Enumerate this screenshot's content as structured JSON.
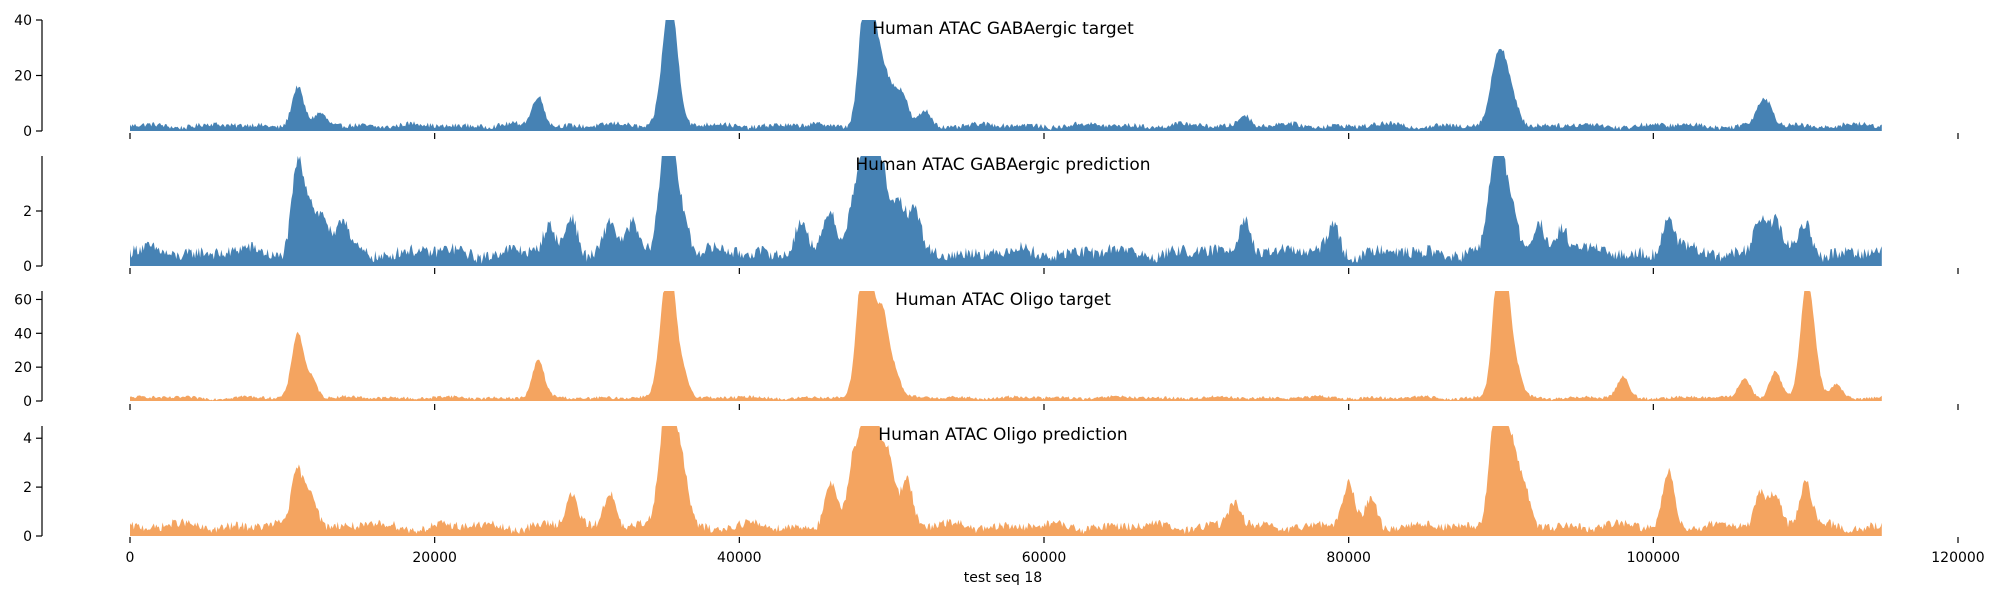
{
  "colors": {
    "blue": "#4682b4",
    "orange": "#f4a460"
  },
  "chart_data": {
    "type": "area",
    "grid": false,
    "xlabel": "test seq 18",
    "xlim": [
      0,
      120000
    ],
    "x_ticks": [
      0,
      20000,
      40000,
      60000,
      80000,
      100000,
      120000
    ],
    "x_tick_labels": [
      "0",
      "20000",
      "40000",
      "60000",
      "80000",
      "100000",
      "120000"
    ],
    "x_range": [
      0,
      115000
    ],
    "panels": [
      {
        "title": "Human ATAC GABAergic target",
        "color": "#4682b4",
        "ylim": [
          0,
          40
        ],
        "y_ticks": [
          0,
          20,
          40
        ],
        "y_tick_labels": [
          "0",
          "20",
          "40"
        ],
        "baseline": 2,
        "peaks": [
          [
            11000,
            14
          ],
          [
            12500,
            4
          ],
          [
            26800,
            11
          ],
          [
            35000,
            14
          ],
          [
            35500,
            37
          ],
          [
            36000,
            8
          ],
          [
            48100,
            20
          ],
          [
            48400,
            33
          ],
          [
            48900,
            18
          ],
          [
            49400,
            14
          ],
          [
            50000,
            9
          ],
          [
            50700,
            11
          ],
          [
            52200,
            5
          ],
          [
            73200,
            4
          ],
          [
            89500,
            10
          ],
          [
            89900,
            16
          ],
          [
            90400,
            14
          ],
          [
            91000,
            5
          ],
          [
            107100,
            7
          ],
          [
            107600,
            5
          ]
        ],
        "series": [
          {
            "x_start": 0,
            "x_end": 115000,
            "note_peaks_max": 38
          }
        ]
      },
      {
        "title": "Human ATAC GABAergic prediction",
        "color": "#4682b4",
        "ylim": [
          0,
          4
        ],
        "y_ticks": [
          0,
          2
        ],
        "y_tick_labels": [
          "0",
          "2"
        ],
        "baseline": 0.5,
        "peaks": [
          [
            11000,
            3.2
          ],
          [
            11800,
            1.6
          ],
          [
            12700,
            1.3
          ],
          [
            14000,
            1.1
          ],
          [
            27500,
            0.9
          ],
          [
            29000,
            1.4
          ],
          [
            31500,
            1.0
          ],
          [
            33000,
            1.1
          ],
          [
            35000,
            2.4
          ],
          [
            35500,
            3.6
          ],
          [
            36300,
            1.5
          ],
          [
            44000,
            1.1
          ],
          [
            46000,
            1.5
          ],
          [
            47500,
            2.0
          ],
          [
            48300,
            3.4
          ],
          [
            48800,
            3.0
          ],
          [
            49500,
            2.6
          ],
          [
            50500,
            1.8
          ],
          [
            51500,
            1.4
          ],
          [
            73200,
            1.4
          ],
          [
            79000,
            1.0
          ],
          [
            89500,
            2.4
          ],
          [
            90000,
            2.6
          ],
          [
            90700,
            1.7
          ],
          [
            92500,
            1.1
          ],
          [
            94000,
            1.0
          ],
          [
            101000,
            1.3
          ],
          [
            107000,
            1.3
          ],
          [
            108000,
            1.1
          ],
          [
            110000,
            1.1
          ]
        ],
        "series": [
          {
            "x_start": 0,
            "x_end": 115000,
            "note_peaks_max": 3.7
          }
        ]
      },
      {
        "title": "Human ATAC Oligo target",
        "color": "#f4a460",
        "ylim": [
          0,
          65
        ],
        "y_ticks": [
          0,
          20,
          40,
          60
        ],
        "y_tick_labels": [
          "0",
          "20",
          "40",
          "60"
        ],
        "baseline": 2,
        "peaks": [
          [
            11000,
            38
          ],
          [
            11900,
            12
          ],
          [
            26800,
            22
          ],
          [
            35000,
            35
          ],
          [
            35500,
            65
          ],
          [
            36300,
            15
          ],
          [
            48000,
            55
          ],
          [
            48500,
            65
          ],
          [
            49400,
            50
          ],
          [
            50200,
            15
          ],
          [
            89800,
            65
          ],
          [
            90300,
            55
          ],
          [
            91000,
            15
          ],
          [
            98000,
            12
          ],
          [
            106000,
            12
          ],
          [
            108000,
            15
          ],
          [
            110000,
            57
          ],
          [
            110500,
            25
          ],
          [
            112000,
            8
          ]
        ],
        "series": [
          {
            "x_start": 0,
            "x_end": 115000,
            "note_peaks_max": 65
          }
        ]
      },
      {
        "title": "Human ATAC Oligo prediction",
        "color": "#f4a460",
        "ylim": [
          0,
          4.5
        ],
        "y_ticks": [
          0,
          2,
          4
        ],
        "y_tick_labels": [
          "0",
          "2",
          "4"
        ],
        "baseline": 0.4,
        "peaks": [
          [
            11000,
            2.3
          ],
          [
            11900,
            1.5
          ],
          [
            29000,
            1.3
          ],
          [
            31500,
            1.5
          ],
          [
            35000,
            3.3
          ],
          [
            35600,
            3.8
          ],
          [
            36300,
            2.2
          ],
          [
            46000,
            1.8
          ],
          [
            47500,
            2.6
          ],
          [
            48300,
            3.8
          ],
          [
            48900,
            4.3
          ],
          [
            49800,
            3.0
          ],
          [
            51000,
            2.0
          ],
          [
            72500,
            1.0
          ],
          [
            80000,
            1.8
          ],
          [
            81500,
            1.2
          ],
          [
            89500,
            3.0
          ],
          [
            90000,
            3.9
          ],
          [
            90700,
            2.8
          ],
          [
            91500,
            1.5
          ],
          [
            101000,
            2.3
          ],
          [
            107000,
            1.5
          ],
          [
            108000,
            1.3
          ],
          [
            110000,
            1.8
          ]
        ],
        "series": [
          {
            "x_start": 0,
            "x_end": 115000,
            "note_peaks_max": 4.3
          }
        ]
      }
    ]
  }
}
